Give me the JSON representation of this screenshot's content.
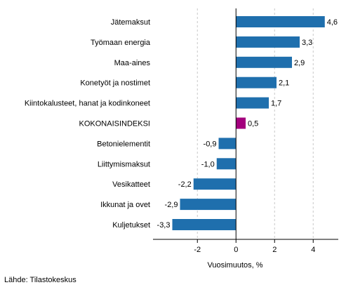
{
  "chart_data": {
    "type": "bar",
    "orientation": "horizontal",
    "categories": [
      "Jätemaksut",
      "Työmaan energia",
      "Maa-aines",
      "Konetyöt ja nostimet",
      "Kiintokalusteet, hanat ja kodinkoneet",
      "KOKONAISINDEKSI",
      "Betonielementit",
      "Liittymismaksut",
      "Vesikatteet",
      "Ikkunat ja ovet",
      "Kuljetukset"
    ],
    "values": [
      4.6,
      3.3,
      2.9,
      2.1,
      1.7,
      0.5,
      -0.9,
      -1.0,
      -2.2,
      -2.9,
      -3.3
    ],
    "value_labels": [
      "4,6",
      "3,3",
      "2,9",
      "2,1",
      "1,7",
      "0,5",
      "-0,9",
      "-1,0",
      "-2,2",
      "-2,9",
      "-3,3"
    ],
    "highlight_category": "KOKONAISINDEKSI",
    "xlabel": "Vuosimuutos, %",
    "ylabel": "",
    "xlim": [
      -4.3,
      5.3
    ],
    "xticks": [
      -2,
      0,
      2,
      4
    ],
    "xtick_labels": [
      "-2",
      "0",
      "2",
      "4"
    ],
    "grid": "vertical gridlines, dashed",
    "colors": {
      "bar": "#1f6fad",
      "highlight": "#a3007d",
      "grid": "#c8c8c8",
      "axis": "#000000"
    }
  },
  "source": "Lähde: Tilastokeskus"
}
